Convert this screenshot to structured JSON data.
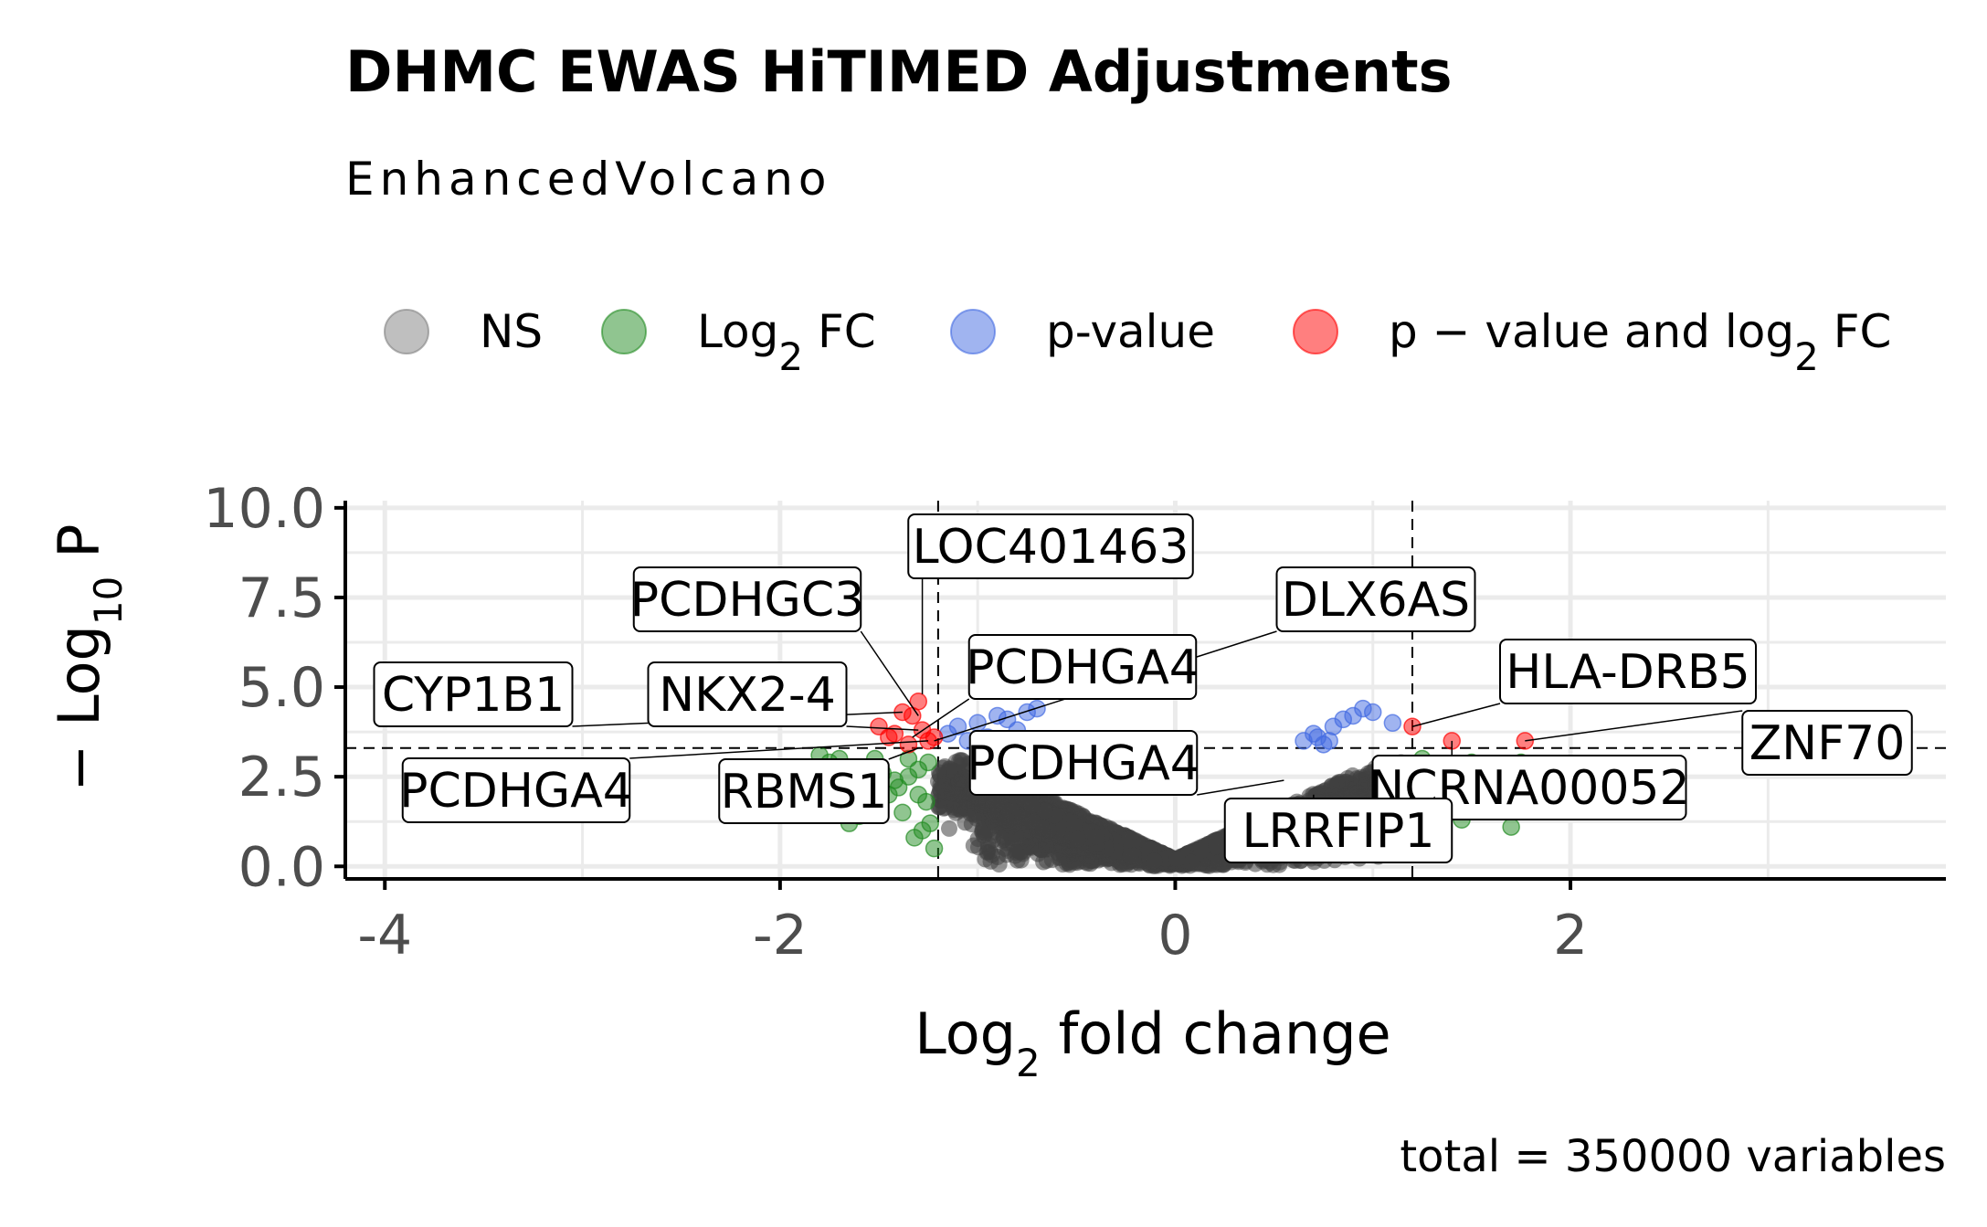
{
  "chart_data": {
    "type": "scatter",
    "title": "DHMC EWAS HiTIMED Adjustments",
    "subtitle": "EnhancedVolcano",
    "xlabel": {
      "main": "Log",
      "sub": "2",
      "rest": " fold change"
    },
    "ylabel": {
      "prefix": "− Log",
      "sub": "10",
      "rest": " P"
    },
    "caption": "total = 350000 variables",
    "xlim": [
      -4.2,
      3.9
    ],
    "ylim": [
      -0.35,
      10.2
    ],
    "x_ticks": [
      -4,
      -2,
      0,
      2
    ],
    "x_tick_labels": [
      "-4",
      "-2",
      "0",
      "2"
    ],
    "y_ticks": [
      0,
      2.5,
      5,
      7.5,
      10
    ],
    "y_tick_labels": [
      "0.0",
      "2.5",
      "5.0",
      "7.5",
      "10.0"
    ],
    "fc_cutoff": 1.2,
    "p_cutoff_line": 3.3,
    "grid": true,
    "legend_position": "top",
    "legend": [
      {
        "key": "NS",
        "parts": [
          {
            "t": "NS"
          }
        ],
        "color": "#808080"
      },
      {
        "key": "log2fc",
        "parts": [
          {
            "t": "Log"
          },
          {
            "t": "2",
            "sub": true
          },
          {
            "t": " FC"
          }
        ],
        "color": "#228B22"
      },
      {
        "key": "pvalue",
        "parts": [
          {
            "t": "p-value"
          }
        ],
        "color": "#4169E1"
      },
      {
        "key": "both",
        "parts": [
          {
            "t": "p − value and log"
          },
          {
            "t": "2",
            "sub": true
          },
          {
            "t": " FC"
          }
        ],
        "color": "#FF0000"
      }
    ],
    "series": [
      {
        "name": "NS",
        "color": "#404040",
        "note": "dense cloud of non-significant points; V-shape from x=-1.2..1.2, y=0..3.3"
      },
      {
        "name": "Log2 FC",
        "color": "#228B22",
        "x": [
          -1.25,
          -1.3,
          -1.35,
          -1.4,
          -1.45,
          -1.5,
          -1.55,
          -1.6,
          -1.65,
          -1.7,
          -1.75,
          -1.8,
          -1.28,
          -1.32,
          -1.38,
          -1.42,
          -1.48,
          -1.52,
          -1.22,
          -1.24,
          -1.26,
          -1.3,
          -1.35,
          1.25,
          1.3,
          1.35,
          1.4,
          1.45,
          1.5,
          1.6,
          1.7,
          1.75
        ],
        "y": [
          2.9,
          2.7,
          2.5,
          2.2,
          2.0,
          1.8,
          1.6,
          1.4,
          1.2,
          3.0,
          2.9,
          3.1,
          1.0,
          0.8,
          1.5,
          2.4,
          2.6,
          3.0,
          0.5,
          1.2,
          1.8,
          2.0,
          3.0,
          3.0,
          2.5,
          2.0,
          1.6,
          1.3,
          2.9,
          2.7,
          1.1,
          2.9
        ]
      },
      {
        "name": "p-value",
        "color": "#4169E1",
        "x": [
          -1.15,
          -1.1,
          -1.0,
          -0.9,
          -0.85,
          -0.8,
          -0.75,
          -0.7,
          -1.05,
          -0.95,
          0.65,
          0.7,
          0.75,
          0.8,
          0.85,
          0.9,
          0.95,
          1.0,
          1.1,
          0.72,
          0.78
        ],
        "y": [
          3.7,
          3.9,
          4.0,
          4.2,
          4.1,
          3.8,
          4.3,
          4.4,
          3.5,
          3.6,
          3.5,
          3.7,
          3.4,
          3.9,
          4.1,
          4.2,
          4.4,
          4.3,
          4.0,
          3.6,
          3.5
        ]
      },
      {
        "name": "p - value and log2 FC",
        "color": "#FF0000",
        "x": [
          -1.3,
          -1.33,
          -1.38,
          -1.28,
          -1.45,
          -1.5,
          -1.25,
          -1.35,
          -1.42,
          -1.22,
          1.2,
          1.4,
          1.77
        ],
        "y": [
          4.6,
          4.2,
          4.3,
          3.8,
          3.6,
          3.9,
          3.5,
          3.4,
          3.7,
          3.6,
          3.9,
          3.5,
          3.5
        ]
      }
    ],
    "annotations": [
      {
        "label": "LOC401463",
        "x": -1.28,
        "y": 4.8
      },
      {
        "label": "PCDHGC3",
        "x": -1.3,
        "y": 4.2
      },
      {
        "label": "CYP1B1",
        "x": -1.38,
        "y": 4.3
      },
      {
        "label": "NKX2-4",
        "x": -1.3,
        "y": 3.8
      },
      {
        "label": "PCDHGA4",
        "x": -1.25,
        "y": 3.5
      },
      {
        "label": "DLX6AS",
        "x": -1.22,
        "y": 3.5
      },
      {
        "label": "HLA-DRB5",
        "x": 1.2,
        "y": 3.9
      },
      {
        "label": "ZNF70",
        "x": 1.77,
        "y": 3.5
      },
      {
        "label": "PCDHGA4",
        "x": -1.33,
        "y": 3.6
      },
      {
        "label": "RBMS1",
        "x": -1.3,
        "y": 3.3
      },
      {
        "label": "PCDHGA4",
        "x": 0.55,
        "y": 2.4
      },
      {
        "label": "NCRNA00052",
        "x": 1.4,
        "y": 3.5
      },
      {
        "label": "LRRFIP1",
        "x": 0.7,
        "y": 2.0
      }
    ]
  }
}
